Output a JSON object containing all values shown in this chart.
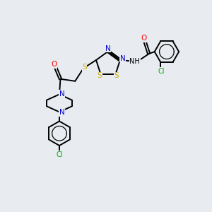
{
  "bg_color": "#e8ecf0",
  "atom_colors": {
    "C": "#000000",
    "N": "#0000cc",
    "S": "#ccaa00",
    "O": "#ff0000",
    "Cl": "#00aa00",
    "H": "#000000"
  },
  "bond_color": "#000000",
  "lw": 1.4
}
